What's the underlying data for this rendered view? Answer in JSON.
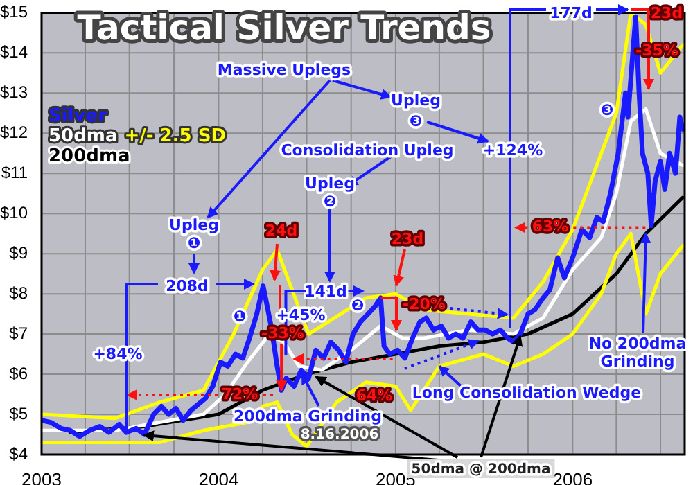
{
  "chart_data": {
    "type": "line",
    "title": "Tactical Silver Trends",
    "xlim": [
      "2003-01-01",
      "2006-08-20"
    ],
    "xticks": [
      {
        "value": "2003",
        "label": "2003"
      },
      {
        "value": "2003-04",
        "label": null
      },
      {
        "value": "2003-07",
        "label": null
      },
      {
        "value": "2003-10",
        "label": null
      },
      {
        "value": "2004",
        "label": "2004"
      },
      {
        "value": "2004-04",
        "label": null
      },
      {
        "value": "2004-07",
        "label": null
      },
      {
        "value": "2004-10",
        "label": null
      },
      {
        "value": "2005",
        "label": "2005"
      },
      {
        "value": "2005-04",
        "label": null
      },
      {
        "value": "2005-07",
        "label": null
      },
      {
        "value": "2005-10",
        "label": null
      },
      {
        "value": "2006",
        "label": "2006"
      },
      {
        "value": "2006-04",
        "label": null
      },
      {
        "value": "2006-07",
        "label": null
      }
    ],
    "ylim": [
      4,
      15
    ],
    "yticks": [
      {
        "value": 4,
        "label": "$4"
      },
      {
        "value": 5,
        "label": "$5"
      },
      {
        "value": 6,
        "label": "$6"
      },
      {
        "value": 7,
        "label": "$7"
      },
      {
        "value": 8,
        "label": "$8"
      },
      {
        "value": 9,
        "label": "$9"
      },
      {
        "value": 10,
        "label": "$10"
      },
      {
        "value": 11,
        "label": "$11"
      },
      {
        "value": 12,
        "label": "$12"
      },
      {
        "value": 13,
        "label": "$13"
      },
      {
        "value": 14,
        "label": "$14"
      },
      {
        "value": 15,
        "label": "$15"
      }
    ],
    "grid": true,
    "legend": "top left",
    "marker": "none",
    "line_style": "solid",
    "series": [
      {
        "name": "Silver",
        "color": "#1a1aff",
        "x": [
          "2003-01-01",
          "2003-01-20",
          "2003-02-10",
          "2003-03-01",
          "2003-03-20",
          "2003-04-10",
          "2003-05-01",
          "2003-05-20",
          "2003-06-10",
          "2003-06-25",
          "2003-07-15",
          "2003-08-01",
          "2003-08-20",
          "2003-09-05",
          "2003-09-20",
          "2003-10-05",
          "2003-10-20",
          "2003-11-05",
          "2003-11-20",
          "2003-12-05",
          "2003-12-20",
          "2004-01-05",
          "2004-01-20",
          "2004-02-05",
          "2004-02-20",
          "2004-03-05",
          "2004-03-20",
          "2004-04-02",
          "2004-04-12",
          "2004-04-20",
          "2004-05-01",
          "2004-05-10",
          "2004-05-20",
          "2004-06-05",
          "2004-06-20",
          "2004-07-05",
          "2004-07-20",
          "2004-08-05",
          "2004-08-20",
          "2004-09-05",
          "2004-09-20",
          "2004-10-05",
          "2004-10-20",
          "2004-11-05",
          "2004-11-20",
          "2004-12-01",
          "2004-12-08",
          "2004-12-20",
          "2005-01-05",
          "2005-01-20",
          "2005-02-05",
          "2005-02-20",
          "2005-03-05",
          "2005-03-20",
          "2005-04-05",
          "2005-04-20",
          "2005-05-05",
          "2005-05-20",
          "2005-06-05",
          "2005-06-20",
          "2005-07-05",
          "2005-07-20",
          "2005-08-05",
          "2005-08-20",
          "2005-09-01",
          "2005-09-15",
          "2005-10-01",
          "2005-10-15",
          "2005-11-01",
          "2005-11-15",
          "2005-12-01",
          "2005-12-15",
          "2006-01-01",
          "2006-01-20",
          "2006-02-05",
          "2006-02-20",
          "2006-03-05",
          "2006-03-20",
          "2006-04-05",
          "2006-04-20",
          "2006-04-25",
          "2006-05-05",
          "2006-05-11",
          "2006-05-18",
          "2006-05-25",
          "2006-06-05",
          "2006-06-12",
          "2006-06-20",
          "2006-07-01",
          "2006-07-10",
          "2006-07-20",
          "2006-08-01",
          "2006-08-10",
          "2006-08-16"
        ],
        "values": [
          4.85,
          4.8,
          4.65,
          4.6,
          4.45,
          4.6,
          4.7,
          4.55,
          4.75,
          4.55,
          4.65,
          4.5,
          5.0,
          5.2,
          5.0,
          5.15,
          4.85,
          5.1,
          5.25,
          5.4,
          5.7,
          6.3,
          6.2,
          6.5,
          6.4,
          6.9,
          7.5,
          8.2,
          7.6,
          7.1,
          6.2,
          5.6,
          5.9,
          5.7,
          6.1,
          5.9,
          6.6,
          6.4,
          6.8,
          6.6,
          6.3,
          7.0,
          7.3,
          7.5,
          7.7,
          7.9,
          6.7,
          6.5,
          6.6,
          6.4,
          6.9,
          7.3,
          7.4,
          7.1,
          7.2,
          6.9,
          7.0,
          6.9,
          7.3,
          7.1,
          7.1,
          7.0,
          7.1,
          6.9,
          6.8,
          7.0,
          7.5,
          7.6,
          7.9,
          8.1,
          8.9,
          8.4,
          8.9,
          9.6,
          9.4,
          9.9,
          9.8,
          10.5,
          11.5,
          13.0,
          12.4,
          14.0,
          14.9,
          13.0,
          11.5,
          11.0,
          9.7,
          10.8,
          11.3,
          10.6,
          11.5,
          11.0,
          12.4,
          12.1
        ]
      },
      {
        "name": "50dma",
        "color": "#ffffff",
        "x": [
          "2003-01-01",
          "2003-06-01",
          "2003-09-01",
          "2003-12-01",
          "2004-01-15",
          "2004-03-01",
          "2004-04-15",
          "2004-05-15",
          "2004-06-15",
          "2004-08-01",
          "2004-10-01",
          "2004-12-01",
          "2005-01-15",
          "2005-03-01",
          "2005-06-01",
          "2005-09-01",
          "2005-11-01",
          "2006-01-01",
          "2006-03-01",
          "2006-04-01",
          "2006-05-01",
          "2006-06-01",
          "2006-07-01",
          "2006-08-16"
        ],
        "values": [
          4.6,
          4.6,
          4.8,
          5.0,
          5.5,
          6.3,
          7.0,
          6.8,
          6.2,
          6.1,
          6.6,
          7.2,
          6.9,
          6.9,
          7.1,
          7.0,
          7.4,
          8.6,
          9.4,
          10.5,
          12.3,
          12.6,
          11.5,
          11.2
        ]
      },
      {
        "name": "+/- 2.5 SD",
        "color": "#ffff00",
        "x": [
          "2003-01-01",
          "2003-06-01",
          "2003-09-01",
          "2003-12-01",
          "2004-02-01",
          "2004-04-01",
          "2004-05-01",
          "2004-07-05",
          "2004-08-01",
          "2004-11-01",
          "2005-01-01",
          "2005-03-01",
          "2005-06-01",
          "2005-09-01",
          "2005-11-01",
          "2006-01-01",
          "2006-04-01",
          "2006-05-01",
          "2006-06-01",
          "2006-07-01",
          "2006-08-16"
        ],
        "values": [
          5.0,
          4.9,
          5.3,
          5.6,
          7.0,
          8.6,
          9.1,
          7.0,
          7.2,
          7.9,
          8.0,
          7.6,
          7.5,
          7.4,
          8.3,
          9.6,
          12.5,
          15.0,
          14.7,
          13.5,
          14.2
        ]
      },
      {
        "color": "#ffff00",
        "x": [
          "2003-01-01",
          "2003-06-01",
          "2003-09-01",
          "2003-12-01",
          "2004-03-01",
          "2004-04-01",
          "2004-05-01",
          "2004-06-01",
          "2004-07-01",
          "2004-09-01",
          "2004-11-01",
          "2005-01-01",
          "2005-02-01",
          "2005-04-01",
          "2005-07-01",
          "2005-09-01",
          "2005-11-01",
          "2006-01-01",
          "2006-03-01",
          "2006-04-01",
          "2006-05-01",
          "2006-06-01",
          "2006-07-01",
          "2006-08-16"
        ],
        "values": [
          4.3,
          4.3,
          4.3,
          4.6,
          4.8,
          5.2,
          5.3,
          4.5,
          4.2,
          5.3,
          5.8,
          5.7,
          5.1,
          6.2,
          6.5,
          6.2,
          6.5,
          7.0,
          8.0,
          9.0,
          9.5,
          7.5,
          8.5,
          9.2
        ]
      },
      {
        "name": "200dma",
        "color": "#000000",
        "x": [
          "2003-03-01",
          "2003-08-01",
          "2004-01-01",
          "2004-04-01",
          "2004-07-01",
          "2004-10-01",
          "2005-01-01",
          "2005-04-01",
          "2005-07-01",
          "2005-10-01",
          "2006-01-01",
          "2006-04-01",
          "2006-06-01",
          "2006-08-16"
        ],
        "values": [
          4.55,
          4.7,
          5.0,
          5.6,
          6.0,
          6.3,
          6.5,
          6.7,
          6.8,
          7.0,
          7.5,
          8.5,
          9.5,
          10.4
        ]
      }
    ],
    "annotations": [
      "Massive Uplegs",
      "Upleg",
      "❶",
      "Consolidation Upleg",
      "Upleg",
      "❷",
      "Upleg",
      "❸",
      "+124%",
      "177d",
      "23d",
      "-35%",
      "❸",
      {
        "text": "63%",
        "x": "2006-05-31",
        "y": 9.65
      },
      "24d",
      {
        "text": "208d",
        "x": "2003-06-25",
        "y": 4.55
      },
      "141d",
      "+84%",
      "❶",
      {
        "text": "+45%",
        "x": "2004-05-19",
        "y": 6.48
      },
      {
        "text": "-33%",
        "x": "2004-05-10",
        "y": 5.6
      },
      "72%",
      "❷",
      "23d",
      {
        "text": "-20%",
        "x": "2004-12-01",
        "y": 7.9
      },
      {
        "text": "64%",
        "x": "2004-12-26",
        "y": 6.38
      },
      "200dma Grinding",
      "8.16.2006",
      {
        "text": "Long Consolidation Wedge",
        "x": "2005-04-01",
        "y": 6.2
      },
      {
        "text": "No 200dma Grinding",
        "x": "2006-06-01",
        "y": 9.5
      },
      {
        "text": "50dma @ 200dma",
        "x": "2005-09-15",
        "y": 6.95
      }
    ]
  }
}
